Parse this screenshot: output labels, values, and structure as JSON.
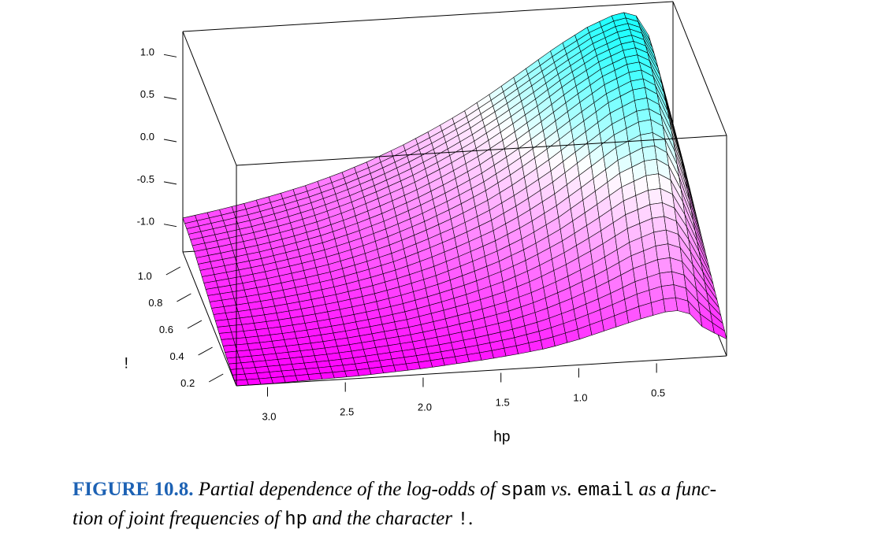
{
  "chart_data": {
    "type": "surface",
    "title": "",
    "xlabel": "hp",
    "ylabel": "!",
    "zlabel": "",
    "x_ticks": [
      "3.0",
      "2.5",
      "2.0",
      "1.5",
      "1.0",
      "0.5"
    ],
    "y_ticks": [
      "0.2",
      "0.4",
      "0.6",
      "0.8",
      "1.0"
    ],
    "z_ticks": [
      "1.0",
      "0.5",
      "0.0",
      "-0.5",
      "-1.0"
    ],
    "xlim": [
      3.2,
      0.05
    ],
    "ylim": [
      0.1,
      1.1
    ],
    "zlim": [
      -1.3,
      1.3
    ],
    "surface": {
      "hp": [
        3.2,
        3.0,
        2.8,
        2.6,
        2.4,
        2.2,
        2.0,
        1.8,
        1.6,
        1.4,
        1.2,
        1.0,
        0.8,
        0.6,
        0.4,
        0.3,
        0.2,
        0.1,
        0.05
      ],
      "exclam": [
        0.1,
        0.2,
        0.3,
        0.4,
        0.5,
        0.6,
        0.7,
        0.8,
        0.9,
        1.0,
        1.1
      ],
      "log_odds_rows_by_exclam": [
        [
          -1.3,
          -1.3,
          -1.29,
          -1.28,
          -1.27,
          -1.25,
          -1.23,
          -1.2,
          -1.17,
          -1.13,
          -1.08,
          -1.0,
          -0.9,
          -0.8,
          -0.72,
          -0.75,
          -0.95,
          -1.05,
          -1.1
        ],
        [
          -1.28,
          -1.27,
          -1.26,
          -1.25,
          -1.23,
          -1.2,
          -1.17,
          -1.13,
          -1.08,
          -1.02,
          -0.94,
          -0.83,
          -0.7,
          -0.55,
          -0.45,
          -0.48,
          -0.7,
          -0.9,
          -1.0
        ],
        [
          -1.25,
          -1.24,
          -1.22,
          -1.2,
          -1.17,
          -1.13,
          -1.09,
          -1.03,
          -0.96,
          -0.88,
          -0.77,
          -0.63,
          -0.47,
          -0.28,
          -0.15,
          -0.18,
          -0.45,
          -0.75,
          -0.9
        ],
        [
          -1.2,
          -1.19,
          -1.17,
          -1.14,
          -1.1,
          -1.05,
          -0.99,
          -0.91,
          -0.82,
          -0.71,
          -0.57,
          -0.4,
          -0.2,
          0.02,
          0.15,
          0.1,
          -0.2,
          -0.6,
          -0.8
        ],
        [
          -1.15,
          -1.13,
          -1.1,
          -1.06,
          -1.01,
          -0.95,
          -0.87,
          -0.78,
          -0.66,
          -0.53,
          -0.37,
          -0.17,
          0.07,
          0.32,
          0.48,
          0.42,
          0.05,
          -0.45,
          -0.7
        ],
        [
          -1.1,
          -1.07,
          -1.03,
          -0.98,
          -0.92,
          -0.84,
          -0.75,
          -0.63,
          -0.5,
          -0.35,
          -0.16,
          0.06,
          0.32,
          0.58,
          0.75,
          0.7,
          0.3,
          -0.3,
          -0.6
        ],
        [
          -1.05,
          -1.01,
          -0.96,
          -0.9,
          -0.83,
          -0.74,
          -0.63,
          -0.5,
          -0.35,
          -0.18,
          0.03,
          0.27,
          0.53,
          0.78,
          0.95,
          0.9,
          0.5,
          -0.15,
          -0.5
        ],
        [
          -1.0,
          -0.95,
          -0.9,
          -0.83,
          -0.75,
          -0.65,
          -0.53,
          -0.39,
          -0.23,
          -0.05,
          0.17,
          0.42,
          0.68,
          0.92,
          1.08,
          1.03,
          0.65,
          -0.05,
          -0.4
        ],
        [
          -0.95,
          -0.9,
          -0.84,
          -0.77,
          -0.68,
          -0.57,
          -0.44,
          -0.3,
          -0.13,
          0.06,
          0.28,
          0.52,
          0.78,
          1.0,
          1.15,
          1.12,
          0.78,
          0.05,
          -0.3
        ],
        [
          -0.92,
          -0.86,
          -0.8,
          -0.72,
          -0.63,
          -0.52,
          -0.39,
          -0.24,
          -0.07,
          0.12,
          0.34,
          0.58,
          0.82,
          1.04,
          1.19,
          1.17,
          0.85,
          0.12,
          -0.25
        ],
        [
          -0.9,
          -0.84,
          -0.77,
          -0.69,
          -0.6,
          -0.49,
          -0.36,
          -0.21,
          -0.04,
          0.15,
          0.37,
          0.61,
          0.85,
          1.06,
          1.21,
          1.2,
          0.9,
          0.18,
          -0.2
        ]
      ]
    }
  },
  "colors": {
    "low": "#ff00ff",
    "mid": "#ffffff",
    "high": "#00ffff",
    "caption_label": "#1d62b4"
  },
  "caption": {
    "label": "FIGURE 10.8.",
    "t1": "Partial dependence of the log-odds of",
    "c1": "spam",
    "t2": "vs.",
    "c2": "email",
    "t3": "as a func-",
    "t4": "tion of joint frequencies of",
    "c3": "hp",
    "t5": "and the character",
    "c4": "!",
    "t6": "."
  }
}
